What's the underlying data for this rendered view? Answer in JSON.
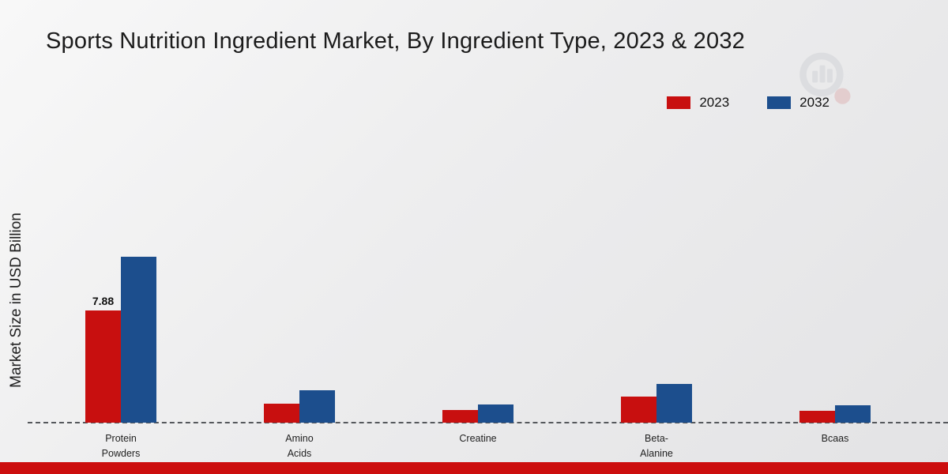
{
  "chart_data": {
    "type": "bar",
    "title": "Sports Nutrition Ingredient Market, By Ingredient Type, 2023 & 2032",
    "xlabel": "",
    "ylabel": "Market Size in USD Billion",
    "categories": [
      "Protein Powders",
      "Amino Acids",
      "Creatine",
      "Beta-Alanine",
      "Bcaas"
    ],
    "category_lines": [
      [
        "Protein",
        "Powders"
      ],
      [
        "Amino",
        "Acids"
      ],
      [
        "Creatine"
      ],
      [
        "Beta-",
        "Alanine"
      ],
      [
        "Bcaas"
      ]
    ],
    "series": [
      {
        "name": "2023",
        "color": "#c80f0f",
        "values": [
          7.88,
          1.35,
          0.9,
          1.85,
          0.85
        ]
      },
      {
        "name": "2032",
        "color": "#1c4e8d",
        "values": [
          11.65,
          2.3,
          1.3,
          2.7,
          1.2
        ]
      }
    ],
    "annotations": [
      {
        "series": "2023",
        "category": "Protein Powders",
        "text": "7.88"
      }
    ],
    "ylim": [
      0,
      14
    ],
    "grid": false,
    "legend_position": "top-right",
    "baseline_style": "dashed"
  },
  "page": {
    "bottom_bar_color": "#cc0e0e"
  }
}
